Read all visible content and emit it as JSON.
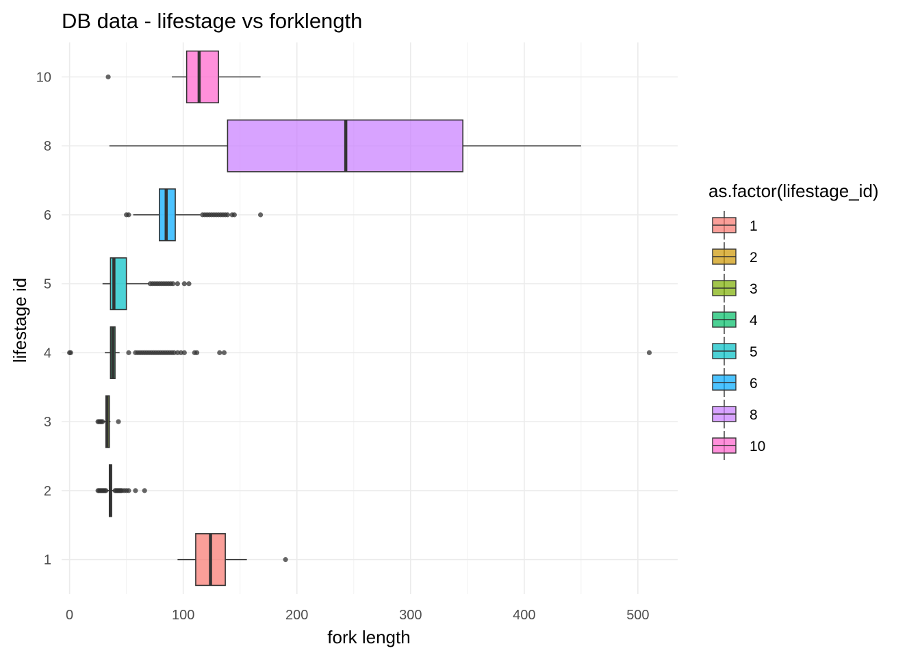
{
  "chart_data": {
    "type": "boxplot",
    "orientation": "horizontal",
    "title": "DB data - lifestage vs forklength",
    "xlabel": "fork length",
    "ylabel": "lifestage id",
    "xlim": [
      -7,
      535
    ],
    "x_ticks": [
      0,
      100,
      200,
      300,
      400,
      500
    ],
    "grid": true,
    "legend": {
      "title": "as.factor(lifestage_id)",
      "position": "right",
      "items": [
        {
          "label": "1",
          "color": "#F8766D"
        },
        {
          "label": "2",
          "color": "#CD9600"
        },
        {
          "label": "3",
          "color": "#7CAE00"
        },
        {
          "label": "4",
          "color": "#00BE67"
        },
        {
          "label": "5",
          "color": "#00BFC4"
        },
        {
          "label": "6",
          "color": "#00A9FF"
        },
        {
          "label": "8",
          "color": "#C77CFF"
        },
        {
          "label": "10",
          "color": "#FF61CC"
        }
      ]
    },
    "categories": [
      "1",
      "2",
      "3",
      "4",
      "5",
      "6",
      "8",
      "10"
    ],
    "boxes": [
      {
        "category": "1",
        "color": "#F8766D",
        "whisker_low": 95,
        "q1": 111,
        "median": 124,
        "q3": 137,
        "whisker_high": 156,
        "outliers": [
          190
        ]
      },
      {
        "category": "2",
        "color": "#CD9600",
        "whisker_low": 33,
        "q1": 35,
        "median": 36,
        "q3": 37,
        "whisker_high": 39,
        "outliers": [
          25,
          26,
          27,
          28,
          29,
          30,
          31,
          32,
          40,
          41,
          42,
          43,
          44,
          45,
          46,
          48,
          50,
          52,
          58,
          66
        ]
      },
      {
        "category": "3",
        "color": "#7CAE00",
        "whisker_low": 30,
        "q1": 32,
        "median": 33,
        "q3": 35,
        "whisker_high": 36,
        "outliers": [
          25,
          26,
          27,
          28,
          29,
          43
        ]
      },
      {
        "category": "4",
        "color": "#00BE67",
        "whisker_low": 31,
        "q1": 36,
        "median": 38,
        "q3": 40,
        "whisker_high": 44,
        "outliers": [
          0,
          1,
          52,
          58,
          60,
          62,
          64,
          66,
          68,
          70,
          72,
          74,
          76,
          78,
          80,
          82,
          84,
          86,
          88,
          90,
          92,
          95,
          98,
          101,
          110,
          112,
          132,
          136,
          510
        ]
      },
      {
        "category": "5",
        "color": "#00BFC4",
        "whisker_low": 29,
        "q1": 36,
        "median": 39,
        "q3": 50,
        "whisker_high": 70,
        "outliers": [
          71,
          73,
          75,
          77,
          79,
          81,
          83,
          85,
          87,
          89,
          91,
          95,
          101,
          105
        ]
      },
      {
        "category": "6",
        "color": "#00A9FF",
        "whisker_low": 56,
        "q1": 79,
        "median": 85,
        "q3": 93,
        "whisker_high": 115,
        "outliers": [
          50,
          52,
          117,
          119,
          121,
          123,
          125,
          127,
          129,
          131,
          133,
          135,
          137,
          139,
          143,
          145,
          168
        ]
      },
      {
        "category": "8",
        "color": "#C77CFF",
        "whisker_low": 35,
        "q1": 139,
        "median": 243,
        "q3": 346,
        "whisker_high": 450,
        "outliers": []
      },
      {
        "category": "10",
        "color": "#FF61CC",
        "whisker_low": 90,
        "q1": 103,
        "median": 114,
        "q3": 131,
        "whisker_high": 168,
        "outliers": [
          34
        ]
      }
    ]
  }
}
